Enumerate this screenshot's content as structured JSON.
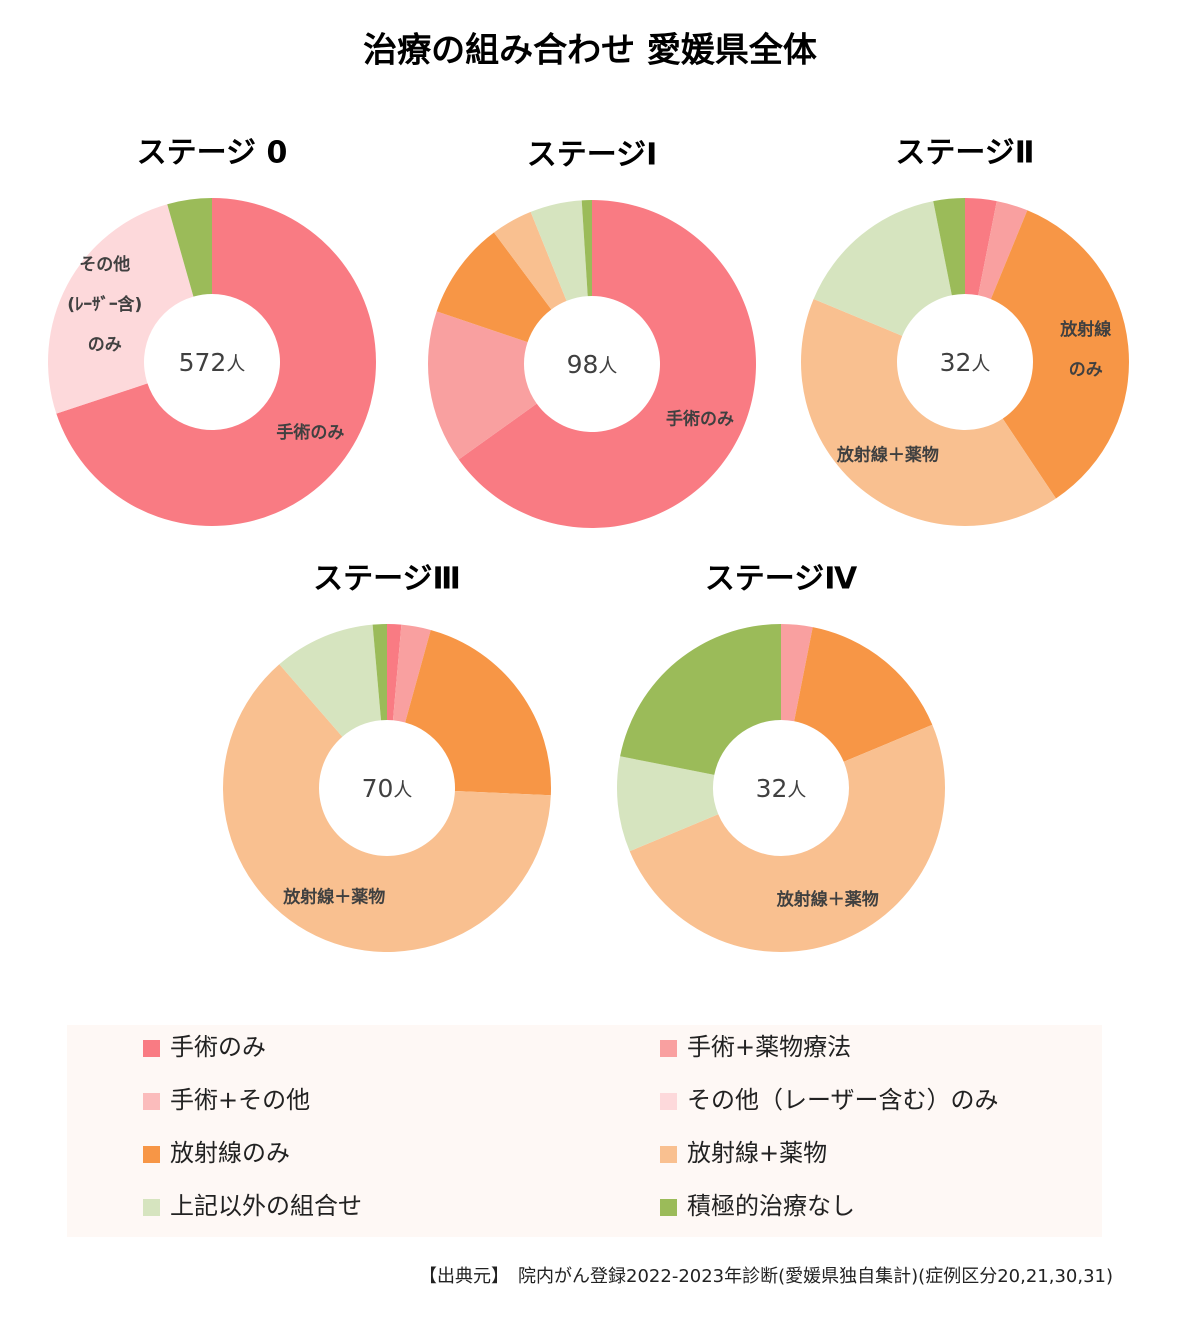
{
  "title": "治療の組み合わせ 愛媛県全体",
  "chart_data": [
    {
      "type": "donut",
      "title": "ステージ 0",
      "total": 572,
      "unit": "人",
      "categories": [
        "手術のみ",
        "手術+薬物療法",
        "手術+その他",
        "その他（レーザー含む）のみ",
        "放射線のみ",
        "放射線+薬物",
        "上記以外の組合せ",
        "積極的治療なし"
      ],
      "colors": [
        "#f97b83",
        "#f9a0a0",
        "#fbbcbc",
        "#fdd9db",
        "#f79646",
        "#f9c090",
        "#d6e4bf",
        "#9bbb59"
      ],
      "values": [
        69.9,
        0,
        0,
        25.7,
        0,
        0,
        0,
        4.4
      ],
      "slice_labels": [
        [
          "手術のみ"
        ],
        null,
        null,
        [
          "その他",
          "(ﾚｰｻﾞｰ含)",
          "のみ"
        ],
        null,
        null,
        null,
        null
      ]
    },
    {
      "type": "donut",
      "title": "ステージⅠ",
      "total": 98,
      "unit": "人",
      "categories": [
        "手術のみ",
        "手術+薬物療法",
        "手術+その他",
        "その他（レーザー含む）のみ",
        "放射線のみ",
        "放射線+薬物",
        "上記以外の組合せ",
        "積極的治療なし"
      ],
      "colors": [
        "#f97b83",
        "#f9a0a0",
        "#fbbcbc",
        "#fdd9db",
        "#f79646",
        "#f9c090",
        "#d6e4bf",
        "#9bbb59"
      ],
      "values": [
        65.1,
        15.1,
        0,
        0,
        9.6,
        4.1,
        5.1,
        1.0
      ],
      "slice_labels": [
        [
          "手術のみ"
        ],
        null,
        null,
        null,
        null,
        null,
        null,
        null
      ]
    },
    {
      "type": "donut",
      "title": "ステージⅡ",
      "total": 32,
      "unit": "人",
      "categories": [
        "手術のみ",
        "手術+薬物療法",
        "手術+その他",
        "その他（レーザー含む）のみ",
        "放射線のみ",
        "放射線+薬物",
        "上記以外の組合せ",
        "積極的治療なし"
      ],
      "colors": [
        "#f97b83",
        "#f9a0a0",
        "#fbbcbc",
        "#fdd9db",
        "#f79646",
        "#f9c090",
        "#d6e4bf",
        "#9bbb59"
      ],
      "values": [
        3.1,
        3.1,
        0,
        0,
        34.4,
        40.6,
        15.6,
        3.1
      ],
      "slice_labels": [
        null,
        null,
        null,
        null,
        [
          "放射線",
          "のみ"
        ],
        [
          "放射線＋薬物"
        ],
        null,
        null
      ]
    },
    {
      "type": "donut",
      "title": "ステージⅢ",
      "total": 70,
      "unit": "人",
      "categories": [
        "手術のみ",
        "手術+薬物療法",
        "手術+その他",
        "その他（レーザー含む）のみ",
        "放射線のみ",
        "放射線+薬物",
        "上記以外の組合せ",
        "積極的治療なし"
      ],
      "colors": [
        "#f97b83",
        "#f9a0a0",
        "#fbbcbc",
        "#fdd9db",
        "#f79646",
        "#f9c090",
        "#d6e4bf",
        "#9bbb59"
      ],
      "values": [
        1.4,
        2.9,
        0,
        0,
        21.4,
        62.9,
        10.0,
        1.4
      ],
      "slice_labels": [
        null,
        null,
        null,
        null,
        null,
        [
          "放射線＋薬物"
        ],
        null,
        null
      ]
    },
    {
      "type": "donut",
      "title": "ステージⅣ",
      "total": 32,
      "unit": "人",
      "categories": [
        "手術のみ",
        "手術+薬物療法",
        "手術+その他",
        "その他（レーザー含む）のみ",
        "放射線のみ",
        "放射線+薬物",
        "上記以外の組合せ",
        "積極的治療なし"
      ],
      "colors": [
        "#f97b83",
        "#f9a0a0",
        "#fbbcbc",
        "#fdd9db",
        "#f79646",
        "#f9c090",
        "#d6e4bf",
        "#9bbb59"
      ],
      "values": [
        0,
        3.1,
        0,
        0,
        15.6,
        50.0,
        9.4,
        21.9
      ],
      "slice_labels": [
        null,
        null,
        null,
        null,
        null,
        [
          "放射線＋薬物"
        ],
        null,
        null
      ]
    }
  ],
  "source": "【出典元】　院内がん登録2022-2023年診断(愛媛県独自集計)(症例区分20,21,30,31)"
}
